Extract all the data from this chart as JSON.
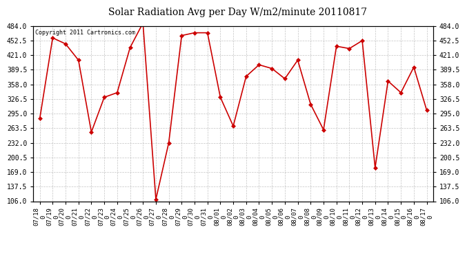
{
  "title": "Solar Radiation Avg per Day W/m2/minute 20110817",
  "copyright": "Copyright 2011 Cartronics.com",
  "dates": [
    "07/18",
    "07/19",
    "07/20",
    "07/21",
    "07/22",
    "07/23",
    "07/24",
    "07/25",
    "07/26",
    "07/27",
    "07/28",
    "07/29",
    "07/30",
    "07/31",
    "08/01",
    "08/02",
    "08/03",
    "08/04",
    "08/05",
    "08/06",
    "08/07",
    "08/08",
    "08/09",
    "08/10",
    "08/11",
    "08/12",
    "08/13",
    "08/14",
    "08/15",
    "08/16",
    "08/17"
  ],
  "values": [
    284,
    458,
    445,
    410,
    255,
    330,
    340,
    437,
    490,
    110,
    232,
    463,
    469,
    469,
    330,
    268,
    375,
    400,
    392,
    370,
    410,
    315,
    260,
    440,
    435,
    452,
    178,
    365,
    340,
    395,
    302
  ],
  "line_color": "#cc0000",
  "marker_color": "#cc0000",
  "bg_color": "#ffffff",
  "grid_color": "#aaaaaa",
  "ylim_min": 106.0,
  "ylim_max": 484.0,
  "yticks": [
    106.0,
    137.5,
    169.0,
    200.5,
    232.0,
    263.5,
    295.0,
    326.5,
    358.0,
    389.5,
    421.0,
    452.5,
    484.0
  ],
  "ytick_labels": [
    "106.0",
    "137.5",
    "169.0",
    "200.5",
    "232.0",
    "263.5",
    "295.0",
    "326.5",
    "358.0",
    "389.5",
    "421.0",
    "452.5",
    "484.0"
  ],
  "fig_width": 6.9,
  "fig_height": 3.75,
  "dpi": 100
}
